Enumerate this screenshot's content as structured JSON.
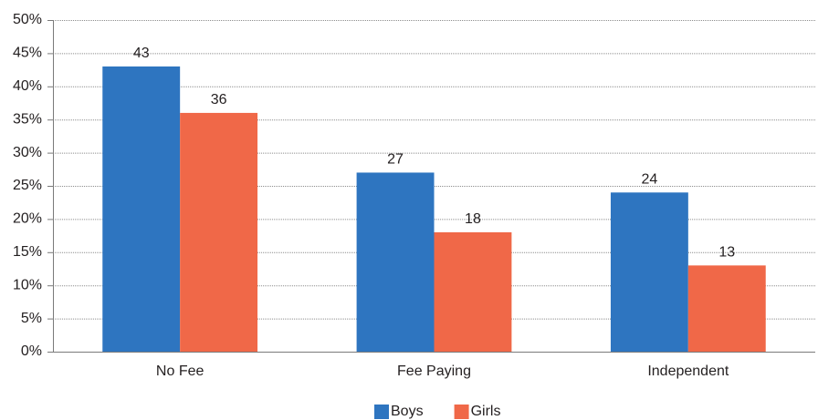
{
  "chart_data": {
    "type": "bar",
    "categories": [
      "No Fee",
      "Fee Paying",
      "Independent"
    ],
    "series": [
      {
        "name": "Boys",
        "color": "#2e75c0",
        "values": [
          43,
          27,
          24
        ]
      },
      {
        "name": "Girls",
        "color": "#f06848",
        "values": [
          36,
          18,
          13
        ]
      }
    ],
    "ylim": [
      0,
      50
    ],
    "yticks": [
      {
        "value": 0,
        "label": "0%"
      },
      {
        "value": 5,
        "label": "5%"
      },
      {
        "value": 10,
        "label": "10%"
      },
      {
        "value": 15,
        "label": "15%"
      },
      {
        "value": 20,
        "label": "20%"
      },
      {
        "value": 25,
        "label": "25%"
      },
      {
        "value": 30,
        "label": "30%"
      },
      {
        "value": 35,
        "label": "35%"
      },
      {
        "value": 40,
        "label": "40%"
      },
      {
        "value": 45,
        "label": "45%"
      },
      {
        "value": 50,
        "label": "50%"
      }
    ],
    "grid": true,
    "legend": "bottom"
  }
}
